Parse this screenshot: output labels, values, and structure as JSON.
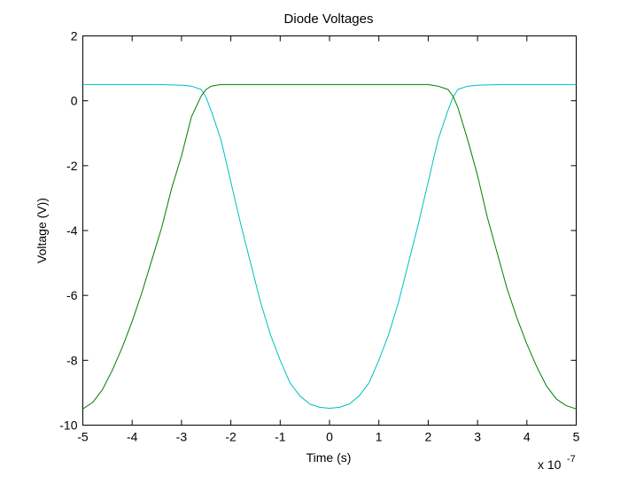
{
  "chart_data": {
    "type": "line",
    "title": "Diode Voltages",
    "xlabel": "Time (s)",
    "ylabel": "Voltage (V))",
    "x_multiplier_label": "x 10",
    "x_multiplier_exponent": "-7",
    "xlim": [
      -5,
      5
    ],
    "ylim": [
      -10,
      2
    ],
    "xticks": [
      -5,
      -4,
      -3,
      -2,
      -1,
      0,
      1,
      2,
      3,
      4,
      5
    ],
    "yticks": [
      -10,
      -8,
      -6,
      -4,
      -2,
      0,
      2
    ],
    "x_scale_note": "x values in units of 1e-7 s",
    "grid": false,
    "legend": "none",
    "series": [
      {
        "color": "#00bfbf",
        "x": [
          -5,
          -4.5,
          -4,
          -3.5,
          -3,
          -2.8,
          -2.6,
          -2.5,
          -2.4,
          -2.2,
          -2,
          -1.8,
          -1.6,
          -1.4,
          -1.2,
          -1,
          -0.8,
          -0.6,
          -0.4,
          -0.2,
          0,
          0.2,
          0.4,
          0.6,
          0.8,
          1,
          1.2,
          1.4,
          1.6,
          1.8,
          2,
          2.2,
          2.4,
          2.5,
          2.6,
          2.8,
          3,
          3.5,
          4,
          4.5,
          5
        ],
        "y": [
          0.5,
          0.5,
          0.5,
          0.5,
          0.48,
          0.45,
          0.35,
          0.1,
          -0.3,
          -1.2,
          -2.5,
          -3.8,
          -5.0,
          -6.2,
          -7.2,
          -8.0,
          -8.7,
          -9.1,
          -9.35,
          -9.45,
          -9.48,
          -9.45,
          -9.35,
          -9.1,
          -8.7,
          -8.0,
          -7.2,
          -6.2,
          -5.0,
          -3.8,
          -2.5,
          -1.2,
          -0.3,
          0.1,
          0.35,
          0.45,
          0.48,
          0.5,
          0.5,
          0.5,
          0.5
        ]
      },
      {
        "color": "#007f00",
        "x": [
          -5,
          -4.8,
          -4.6,
          -4.4,
          -4.2,
          -4,
          -3.8,
          -3.6,
          -3.4,
          -3.2,
          -3,
          -2.8,
          -2.6,
          -2.5,
          -2.4,
          -2.2,
          -2,
          -1.5,
          -1,
          0,
          1,
          1.5,
          2,
          2.2,
          2.4,
          2.5,
          2.6,
          2.8,
          3,
          3.2,
          3.4,
          3.6,
          3.8,
          4,
          4.2,
          4.4,
          4.6,
          4.8,
          5
        ],
        "y": [
          -9.5,
          -9.3,
          -8.9,
          -8.3,
          -7.6,
          -6.8,
          -5.9,
          -4.9,
          -3.9,
          -2.7,
          -1.7,
          -0.5,
          0.15,
          0.35,
          0.45,
          0.5,
          0.5,
          0.5,
          0.5,
          0.5,
          0.5,
          0.5,
          0.5,
          0.45,
          0.35,
          0.15,
          -0.2,
          -1.2,
          -2.3,
          -3.6,
          -4.7,
          -5.8,
          -6.7,
          -7.5,
          -8.2,
          -8.8,
          -9.2,
          -9.4,
          -9.5
        ]
      }
    ]
  }
}
